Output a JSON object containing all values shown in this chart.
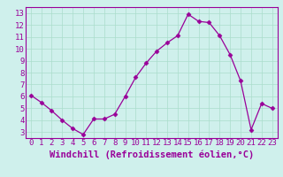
{
  "x": [
    0,
    1,
    2,
    3,
    4,
    5,
    6,
    7,
    8,
    9,
    10,
    11,
    12,
    13,
    14,
    15,
    16,
    17,
    18,
    19,
    20,
    21,
    22,
    23
  ],
  "y": [
    6.1,
    5.5,
    4.8,
    4.0,
    3.3,
    2.8,
    4.1,
    4.1,
    4.5,
    6.0,
    7.6,
    8.8,
    9.8,
    10.5,
    11.1,
    12.9,
    12.3,
    12.2,
    11.1,
    9.5,
    7.3,
    3.2,
    5.4,
    5.0
  ],
  "line_color": "#990099",
  "marker": "D",
  "marker_size": 2.5,
  "bg_color": "#cff0ec",
  "grid_color": "#aaddcc",
  "xlabel": "Windchill (Refroidissement éolien,°C)",
  "xlabel_fontsize": 7.5,
  "xlim": [
    -0.5,
    23.5
  ],
  "ylim": [
    2.5,
    13.5
  ],
  "yticks": [
    3,
    4,
    5,
    6,
    7,
    8,
    9,
    10,
    11,
    12,
    13
  ],
  "xticks": [
    0,
    1,
    2,
    3,
    4,
    5,
    6,
    7,
    8,
    9,
    10,
    11,
    12,
    13,
    14,
    15,
    16,
    17,
    18,
    19,
    20,
    21,
    22,
    23
  ],
  "tick_fontsize": 6.5,
  "tick_color": "#990099",
  "spine_color": "#990099",
  "axis_label_color": "#990099"
}
